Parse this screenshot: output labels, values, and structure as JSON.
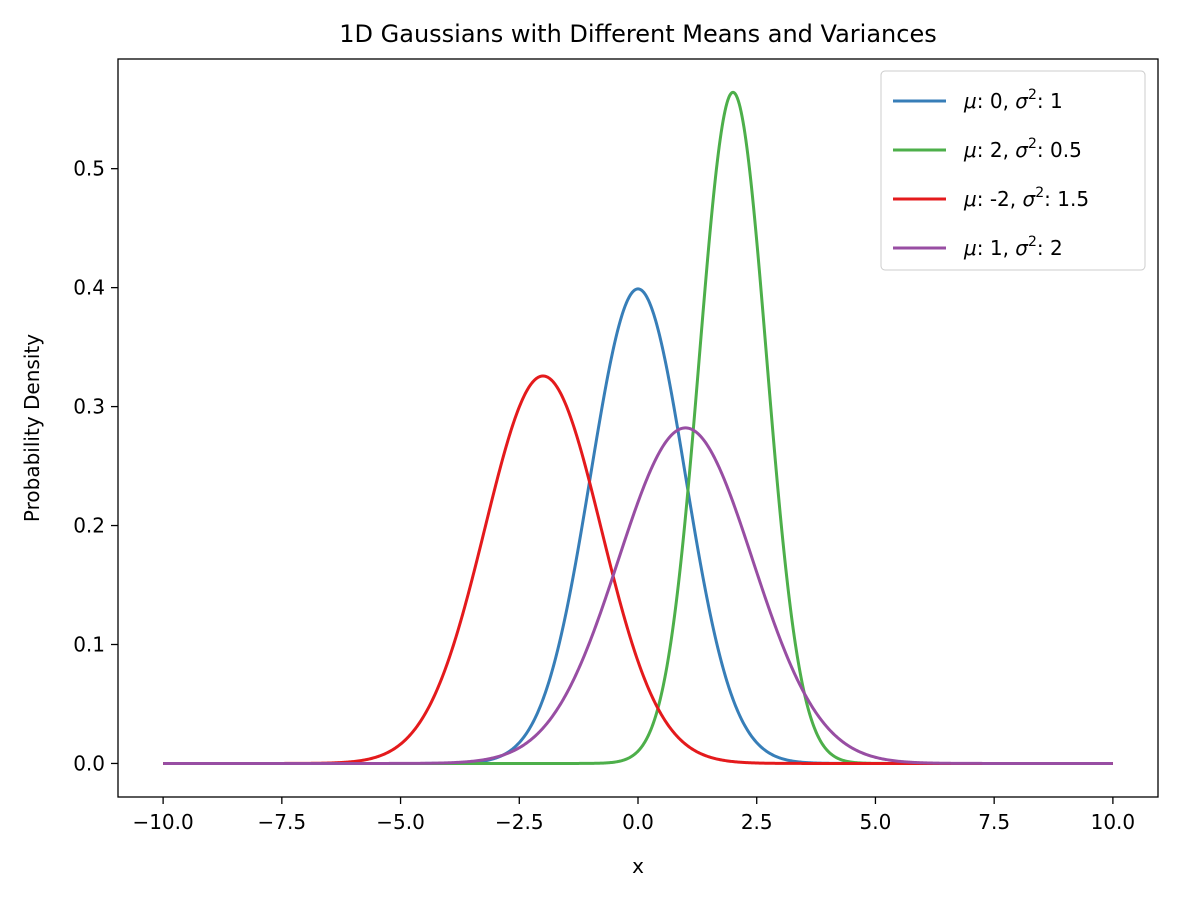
{
  "chart_data": {
    "type": "line",
    "title": "1D Gaussians with Different Means and Variances",
    "xlabel": "x",
    "ylabel": "Probability Density",
    "xlim": [
      -10.95,
      10.95
    ],
    "ylim": [
      -0.0282,
      0.5922
    ],
    "x_ticks": [
      -10.0,
      -7.5,
      -5.0,
      -2.5,
      0.0,
      2.5,
      5.0,
      7.5,
      10.0
    ],
    "x_tick_labels": [
      "−10.0",
      "−7.5",
      "−5.0",
      "−2.5",
      "0.0",
      "2.5",
      "5.0",
      "7.5",
      "10.0"
    ],
    "y_ticks": [
      0.0,
      0.1,
      0.2,
      0.3,
      0.4,
      0.5
    ],
    "y_tick_labels": [
      "0.0",
      "0.1",
      "0.2",
      "0.3",
      "0.4",
      "0.5"
    ],
    "grid": false,
    "legend_position": "top-right",
    "x_range": [
      -10,
      10
    ],
    "series": [
      {
        "name": "μ: 0, σ²: 1",
        "mu_text": "0",
        "var_text": "1",
        "mu": 0,
        "variance": 1,
        "color": "#377eb8"
      },
      {
        "name": "μ: 2, σ²: 0.5",
        "mu_text": "2",
        "var_text": "0.5",
        "mu": 2,
        "variance": 0.5,
        "color": "#4daf4a"
      },
      {
        "name": "μ: -2, σ²: 1.5",
        "mu_text": "-2",
        "var_text": "1.5",
        "mu": -2,
        "variance": 1.5,
        "color": "#e41a1c"
      },
      {
        "name": "μ: 1, σ²: 2",
        "mu_text": "1",
        "var_text": "2",
        "mu": 1,
        "variance": 2,
        "color": "#984ea3"
      }
    ]
  }
}
